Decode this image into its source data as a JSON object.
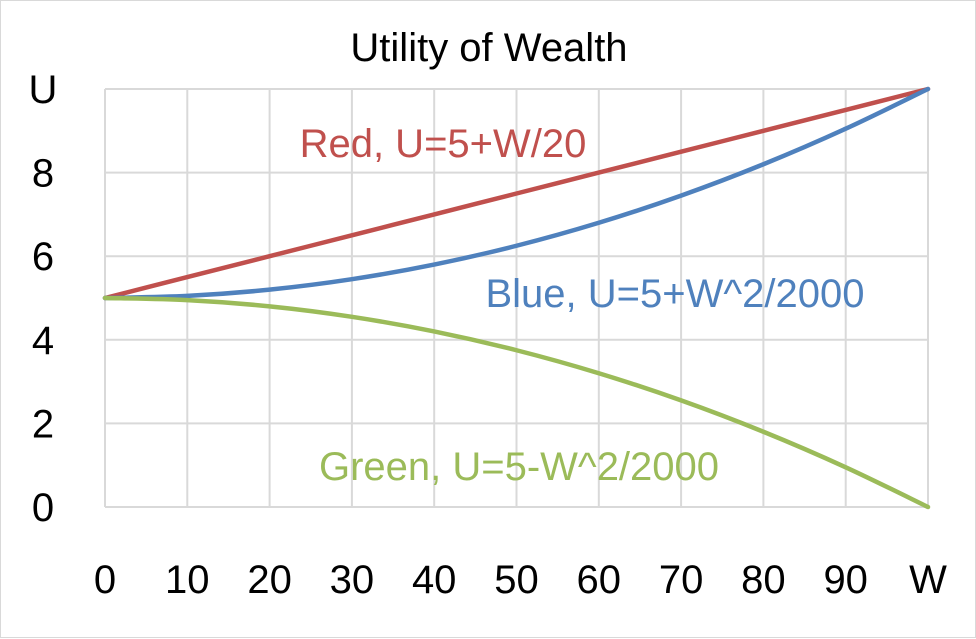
{
  "chart_data": {
    "type": "line",
    "title": "Utility of Wealth",
    "xlabel": "W",
    "ylabel": "U",
    "xlim": [
      0,
      100
    ],
    "ylim": [
      0,
      10
    ],
    "x_ticks": [
      0,
      10,
      20,
      30,
      40,
      50,
      60,
      70,
      80,
      90,
      100
    ],
    "x_tick_labels": [
      "0",
      "10",
      "20",
      "30",
      "40",
      "50",
      "60",
      "70",
      "80",
      "90",
      "W"
    ],
    "y_ticks": [
      0,
      2,
      4,
      6,
      8,
      10
    ],
    "y_tick_labels": [
      "0",
      "2",
      "4",
      "6",
      "8",
      "U"
    ],
    "grid": true,
    "legend": "none",
    "x": [
      0,
      10,
      20,
      30,
      40,
      50,
      60,
      70,
      80,
      90,
      100
    ],
    "series": [
      {
        "key": "red",
        "color": "#C0504D",
        "annotation": "Red, U=5+W/20",
        "values": [
          5,
          5.5,
          6,
          6.5,
          7,
          7.5,
          8,
          8.5,
          9,
          9.5,
          10
        ]
      },
      {
        "key": "blue",
        "color": "#4F81BD",
        "annotation": "Blue, U=5+W^2/2000",
        "values": [
          5,
          5.05,
          5.2,
          5.45,
          5.8,
          6.25,
          6.8,
          7.45,
          8.2,
          9.05,
          10
        ]
      },
      {
        "key": "green",
        "color": "#9BBB59",
        "annotation": "Green, U=5-W^2/2000",
        "values": [
          5,
          4.95,
          4.8,
          4.55,
          4.2,
          3.75,
          3.2,
          2.55,
          1.8,
          0.95,
          0
        ]
      }
    ]
  }
}
